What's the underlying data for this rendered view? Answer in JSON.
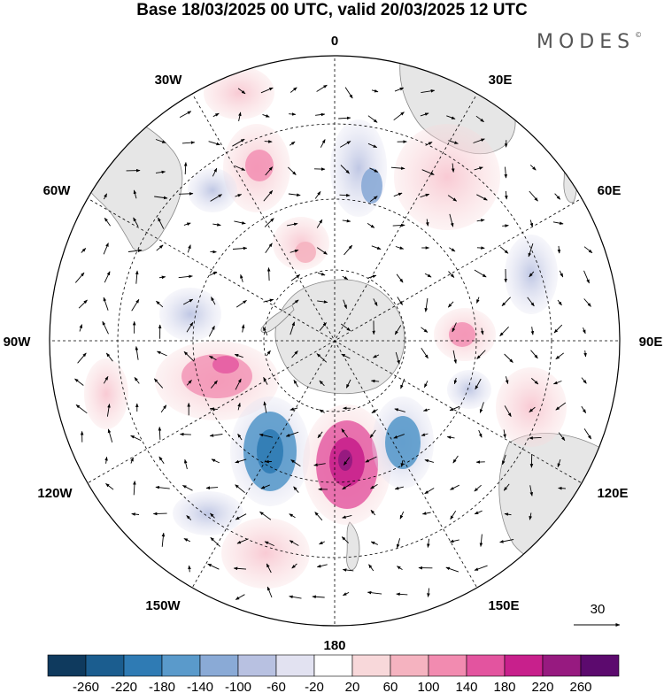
{
  "title": "Base 18/03/2025 00 UTC, valid 20/03/2025 12 UTC",
  "brand": "MODES",
  "brand_mark": "©",
  "longitude_labels": {
    "l0": "0",
    "l30e": "30E",
    "l60e": "60E",
    "l90e": "90E",
    "l120e": "120E",
    "l150e": "150E",
    "l180": "180",
    "l150w": "150W",
    "l120w": "120W",
    "l90w": "90W",
    "l60w": "60W",
    "l30w": "30W"
  },
  "wind_reference": "30",
  "colorbar": {
    "colors": [
      "#0f3a5e",
      "#1b5d8f",
      "#2f7bb4",
      "#5a9acb",
      "#8aaad6",
      "#b8c1e1",
      "#e2e2f1",
      "#ffffff",
      "#f8d8da",
      "#f5b3c0",
      "#f28bb0",
      "#e3549f",
      "#c8208c",
      "#971a80",
      "#5c0a6e"
    ],
    "labels": [
      "-260",
      "-220",
      "-180",
      "-140",
      "-100",
      "-60",
      "-20",
      "20",
      "60",
      "100",
      "140",
      "180",
      "220",
      "260"
    ]
  }
}
